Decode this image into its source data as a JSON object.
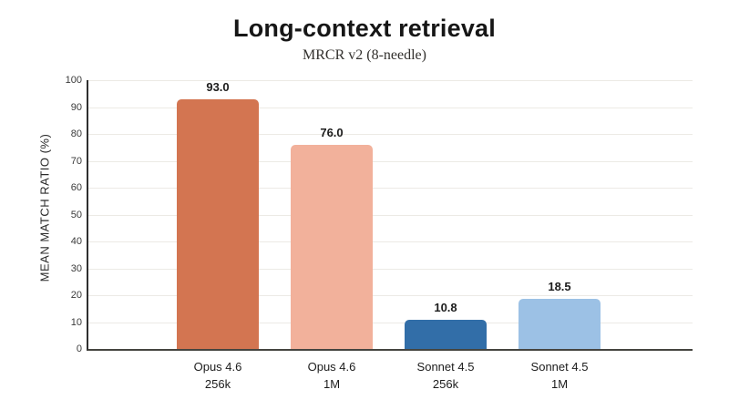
{
  "header": {
    "title": "Long-context retrieval",
    "subtitle": "MRCR v2 (8-needle)"
  },
  "chart_data": {
    "type": "bar",
    "title": "Long-context retrieval",
    "subtitle": "MRCR v2 (8-needle)",
    "ylabel": "MEAN MATCH RATIO (%)",
    "xlabel": "",
    "ylim": [
      0,
      100
    ],
    "yticks": [
      0,
      10,
      20,
      30,
      40,
      50,
      60,
      70,
      80,
      90,
      100
    ],
    "grid": "horizontal",
    "legend": "none",
    "categories": [
      {
        "line1": "Opus 4.6",
        "line2": "256k"
      },
      {
        "line1": "Opus 4.6",
        "line2": "1M"
      },
      {
        "line1": "Sonnet 4.5",
        "line2": "256k"
      },
      {
        "line1": "Sonnet 4.5",
        "line2": "1M"
      }
    ],
    "values": [
      93.0,
      76.0,
      10.8,
      18.5
    ],
    "value_labels": [
      "93.0",
      "76.0",
      "10.8",
      "18.5"
    ],
    "bar_colors": [
      "#D37551",
      "#F2B19B",
      "#326EA8",
      "#9CC1E5"
    ]
  },
  "colors": {
    "background": "#FFFFFF",
    "gridline": "#ECEAE5",
    "left_spine": "#2F2F2F",
    "bottom_spine": "#45443F",
    "title_text": "#161616",
    "subtitle_text": "#33312E",
    "tick_text": "#3A3A3A",
    "label_text": "#1C1C1C"
  }
}
